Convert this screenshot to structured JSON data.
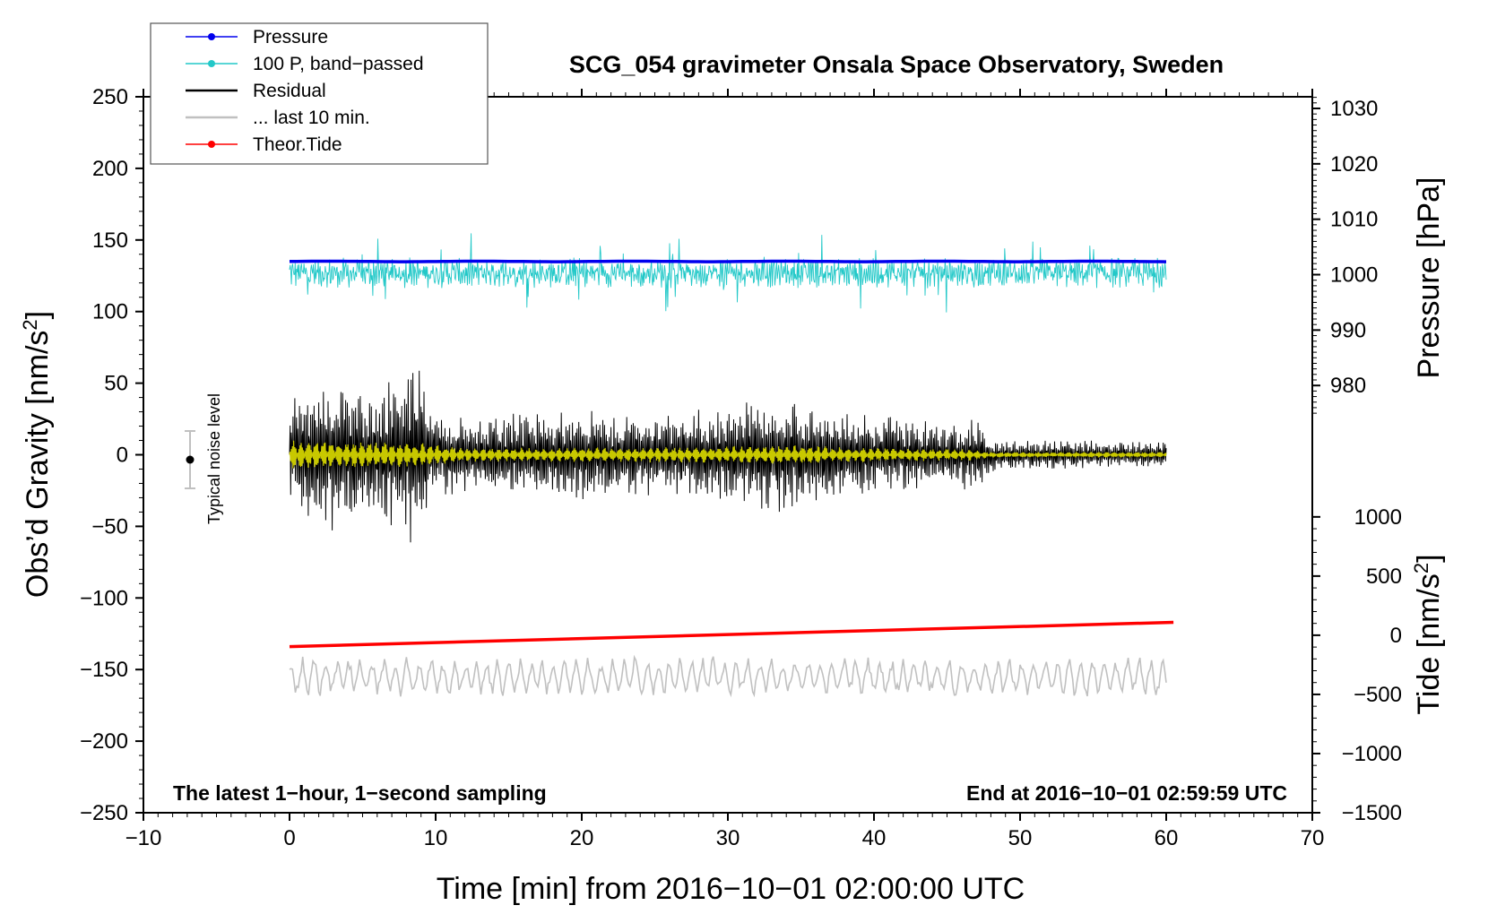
{
  "chart_data": {
    "type": "line",
    "title": "SCG_054 gravimeter Onsala Space Observatory, Sweden",
    "xlabel": "Time [min] from 2016−10−01 02:00:00 UTC",
    "ylabel_left": "Obs’d Gravity [nm/s",
    "ylabel_left_sup": "2",
    "ylabel_left_close": "]",
    "ylabel_right_pressure": "Pressure [hPa]",
    "ylabel_right_tide": "Tide [nm/s",
    "ylabel_right_tide_sup": "2",
    "ylabel_right_tide_close": "]",
    "xlim": [
      -10,
      70
    ],
    "ylim_left": [
      -250,
      250
    ],
    "x_ticks": [
      "−10",
      "0",
      "10",
      "20",
      "30",
      "40",
      "50",
      "60",
      "70"
    ],
    "y_ticks_left": [
      "250",
      "200",
      "150",
      "100",
      "50",
      "0",
      "−50",
      "−100",
      "−150",
      "−200",
      "−250"
    ],
    "pressure_ticks": [
      "1030",
      "1020",
      "1010",
      "1000",
      "990",
      "980"
    ],
    "tide_ticks": [
      "1000",
      "500",
      "0",
      "−500",
      "−1000",
      "−1500"
    ],
    "pressure_axis": {
      "value_at_gravity_0": 967.5,
      "hpa_per_gravity_unit": 0.2584
    },
    "tide_axis": {
      "value_at_gravity_neg250": -1500,
      "nms2_per_gravity_unit": 12.1
    },
    "note_left": "The latest 1−hour, 1−second sampling",
    "note_right": "End at 2016−10−01 02:59:59 UTC",
    "noise_label": "Typical noise level",
    "noise_marker": {
      "x": -7,
      "y": 0,
      "half_range": 20
    },
    "legend": [
      {
        "label": "Pressure",
        "color": "#0000ee",
        "marker": true
      },
      {
        "label": "100 P, band−passed",
        "color": "#22c8c8",
        "marker": true
      },
      {
        "label": "Residual",
        "color": "#000000",
        "marker": false
      },
      {
        "label": "... last 10 min.",
        "color": "#c0c0c0",
        "marker": false
      },
      {
        "label": "Theor.Tide",
        "color": "#ff0000",
        "marker": true
      }
    ],
    "series": [
      {
        "name": "Pressure",
        "color": "#0000ee",
        "x_range": [
          0,
          60
        ],
        "level": 135,
        "amplitude": 0.6
      },
      {
        "name": "100 P, band−passed",
        "color": "#22c8c8",
        "x_range": [
          0,
          60
        ],
        "level": 127,
        "amplitude": 9
      },
      {
        "name": "Residual",
        "color": "#000000",
        "x_range": [
          0,
          60
        ],
        "envelope": {
          "x": [
            0,
            3,
            6,
            8.5,
            10,
            15,
            20,
            25,
            30,
            33.5,
            36,
            40,
            45,
            47,
            48,
            55,
            60
          ],
          "amp": [
            40,
            55,
            45,
            70,
            28,
            30,
            32,
            28,
            34,
            42,
            36,
            30,
            22,
            28,
            12,
            10,
            10
          ]
        }
      },
      {
        "name": "Residual (band filtered)",
        "color": "#c8c800",
        "x_range": [
          0,
          60
        ],
        "envelope": {
          "x": [
            0,
            3,
            8.5,
            12,
            20,
            30,
            34,
            40,
            47,
            48,
            60
          ],
          "amp": [
            12,
            10,
            9,
            5,
            5,
            6,
            7,
            5,
            4,
            2,
            2
          ]
        }
      },
      {
        "name": "... last 10 min.",
        "color": "#c0c0c0",
        "x_range": [
          0,
          60
        ],
        "level": -155,
        "amplitude": 11
      },
      {
        "name": "Theor.Tide",
        "color": "#ff0000",
        "x_range": [
          0,
          60.5
        ],
        "y_start": -134,
        "y_end": -117
      }
    ]
  }
}
